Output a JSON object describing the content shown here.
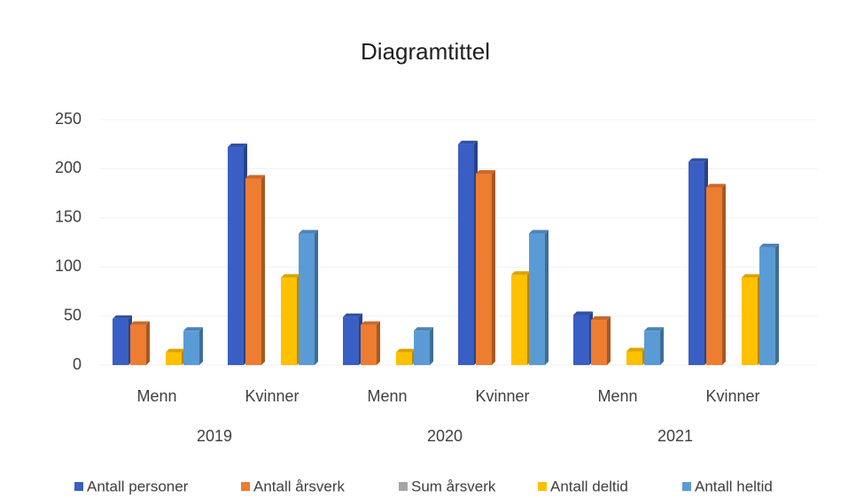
{
  "chart_data": {
    "type": "bar",
    "title": "Diagramtittel",
    "categories": [
      "Menn",
      "Kvinner",
      "Menn",
      "Kvinner",
      "Menn",
      "Kvinner"
    ],
    "groups": [
      "2019",
      "2020",
      "2021"
    ],
    "series": [
      {
        "name": "Antall personer",
        "color": "#3a5fc4",
        "values": [
          47,
          222,
          49,
          225,
          51,
          207
        ]
      },
      {
        "name": "Antall årsverk",
        "color": "#ed7d31",
        "values": [
          41,
          190,
          41,
          195,
          46,
          181
        ]
      },
      {
        "name": "Sum årsverk",
        "color": "#a5a5a5",
        "values": [
          null,
          null,
          null,
          null,
          null,
          null
        ]
      },
      {
        "name": "Antall deltid",
        "color": "#ffc000",
        "values": [
          13,
          89,
          13,
          92,
          14,
          89
        ]
      },
      {
        "name": "Antall heltid",
        "color": "#5b9bd5",
        "values": [
          35,
          134,
          35,
          134,
          35,
          120
        ]
      }
    ],
    "ylim": [
      0,
      250
    ],
    "yticks": [
      0,
      50,
      100,
      150,
      200,
      250
    ],
    "grid": true,
    "legend": "bottom"
  }
}
